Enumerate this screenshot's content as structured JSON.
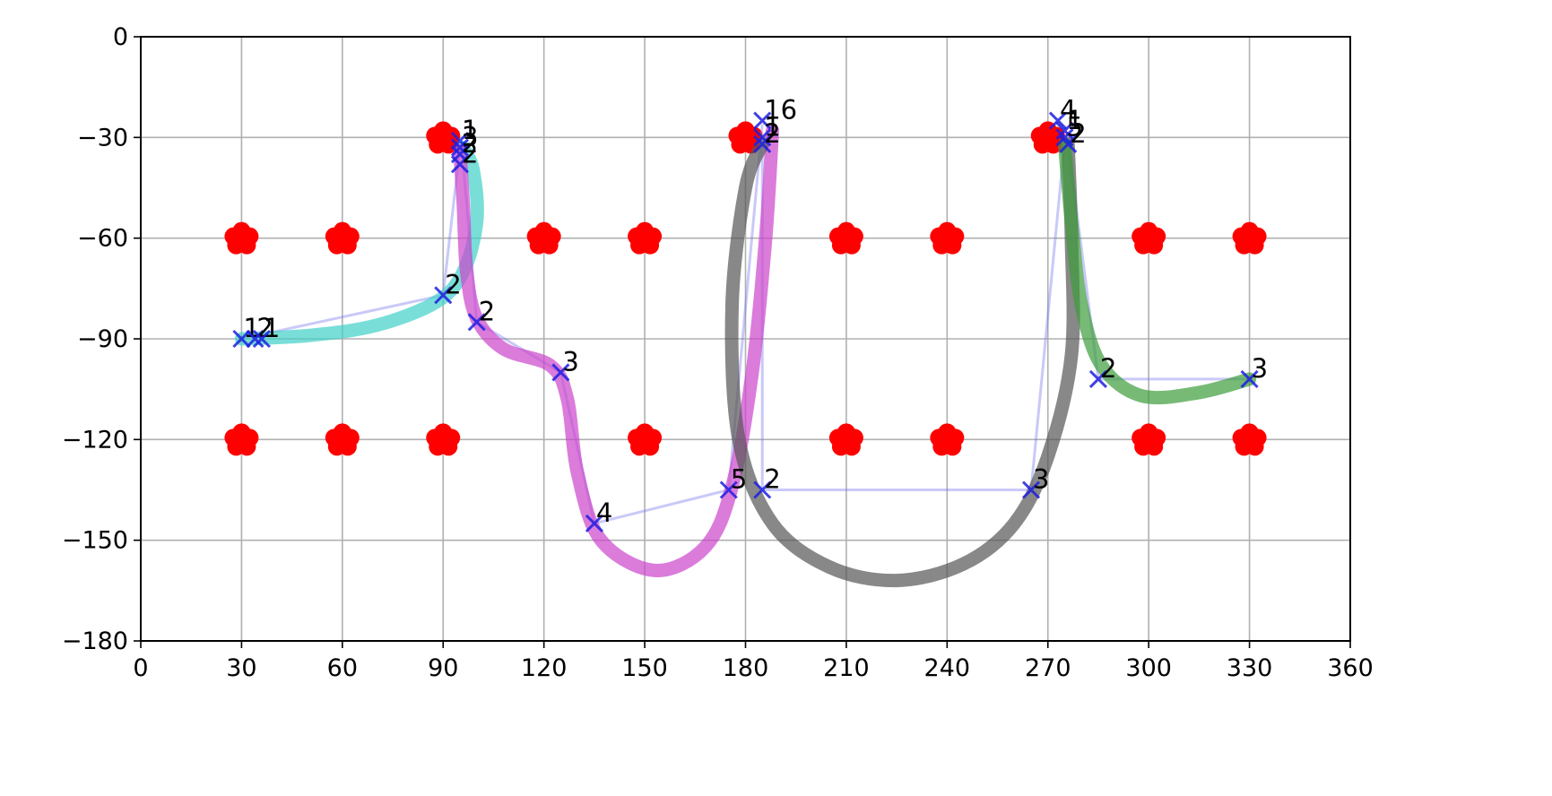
{
  "chart_data": {
    "type": "line",
    "title": "",
    "xlabel": "",
    "ylabel": "",
    "xlim": [
      0,
      360
    ],
    "ylim": [
      -180,
      0
    ],
    "xticks": [
      "0",
      "30",
      "60",
      "90",
      "120",
      "150",
      "180",
      "210",
      "240",
      "270",
      "300",
      "330",
      "360"
    ],
    "yticks": [
      "0",
      "−30",
      "−60",
      "−90",
      "−120",
      "−150",
      "−180"
    ],
    "grid": true,
    "colors": {
      "obstacle": "#ff0000",
      "marker": "#1f1fe0",
      "waypoint_link": "#7777ee",
      "cyan": "#40d0c8",
      "magenta": "#cc44cc",
      "gray": "#555555",
      "green": "#3c9c3c"
    },
    "obstacles": [
      {
        "x": 90,
        "y": -30
      },
      {
        "x": 180,
        "y": -30
      },
      {
        "x": 270,
        "y": -30
      },
      {
        "x": 30,
        "y": -60
      },
      {
        "x": 60,
        "y": -60
      },
      {
        "x": 120,
        "y": -60
      },
      {
        "x": 150,
        "y": -60
      },
      {
        "x": 210,
        "y": -60
      },
      {
        "x": 240,
        "y": -60
      },
      {
        "x": 300,
        "y": -60
      },
      {
        "x": 330,
        "y": -60
      },
      {
        "x": 30,
        "y": -120
      },
      {
        "x": 60,
        "y": -120
      },
      {
        "x": 90,
        "y": -120
      },
      {
        "x": 150,
        "y": -120
      },
      {
        "x": 210,
        "y": -120
      },
      {
        "x": 240,
        "y": -120
      },
      {
        "x": 300,
        "y": -120
      },
      {
        "x": 330,
        "y": -120
      }
    ],
    "trajectories": [
      {
        "color": "#40d0c8",
        "points": [
          [
            30,
            -90
          ],
          [
            50,
            -89
          ],
          [
            70,
            -86
          ],
          [
            88,
            -79
          ],
          [
            96,
            -70
          ],
          [
            100,
            -55
          ],
          [
            99,
            -40
          ],
          [
            96,
            -33
          ]
        ]
      },
      {
        "color": "#cc44cc",
        "points": [
          [
            95,
            -34
          ],
          [
            96,
            -50
          ],
          [
            97,
            -70
          ],
          [
            100,
            -84
          ],
          [
            108,
            -93
          ],
          [
            122,
            -98
          ],
          [
            127,
            -108
          ],
          [
            130,
            -130
          ],
          [
            137,
            -150
          ],
          [
            153,
            -159
          ],
          [
            168,
            -152
          ],
          [
            176,
            -134
          ],
          [
            182,
            -100
          ],
          [
            186,
            -60
          ],
          [
            188,
            -28
          ]
        ]
      },
      {
        "color": "#555555",
        "points": [
          [
            185,
            -32
          ],
          [
            180,
            -45
          ],
          [
            176,
            -80
          ],
          [
            178,
            -120
          ],
          [
            188,
            -145
          ],
          [
            205,
            -158
          ],
          [
            225,
            -162
          ],
          [
            245,
            -157
          ],
          [
            260,
            -145
          ],
          [
            270,
            -125
          ],
          [
            277,
            -95
          ],
          [
            277,
            -60
          ],
          [
            276,
            -32
          ]
        ]
      },
      {
        "color": "#3c9c3c",
        "points": [
          [
            275,
            -32
          ],
          [
            277,
            -55
          ],
          [
            280,
            -80
          ],
          [
            286,
            -98
          ],
          [
            298,
            -107
          ],
          [
            315,
            -106
          ],
          [
            330,
            -102
          ]
        ]
      }
    ],
    "waypoint_links": [
      [
        [
          30,
          -90
        ],
        [
          90,
          -77
        ],
        [
          95,
          -33
        ]
      ],
      [
        [
          96,
          -38
        ],
        [
          100,
          -85
        ],
        [
          125,
          -100
        ],
        [
          135,
          -145
        ],
        [
          175,
          -135
        ],
        [
          185,
          -26
        ]
      ],
      [
        [
          185,
          -31
        ],
        [
          185,
          -135
        ],
        [
          265,
          -135
        ],
        [
          275,
          -31
        ]
      ],
      [
        [
          276,
          -32
        ],
        [
          285,
          -102
        ],
        [
          330,
          -102
        ]
      ]
    ],
    "markers": [
      {
        "x": 30,
        "y": -90,
        "label": "1"
      },
      {
        "x": 34,
        "y": -90,
        "label": "2"
      },
      {
        "x": 36,
        "y": -90,
        "label": "1"
      },
      {
        "x": 90,
        "y": -77,
        "label": "2"
      },
      {
        "x": 95,
        "y": -31,
        "label": "1"
      },
      {
        "x": 95,
        "y": -33,
        "label": "3"
      },
      {
        "x": 95,
        "y": -35,
        "label": "2"
      },
      {
        "x": 95,
        "y": -38,
        "label": "2"
      },
      {
        "x": 100,
        "y": -85,
        "label": "2"
      },
      {
        "x": 125,
        "y": -100,
        "label": "3"
      },
      {
        "x": 135,
        "y": -145,
        "label": "4"
      },
      {
        "x": 175,
        "y": -135,
        "label": "5"
      },
      {
        "x": 185,
        "y": -135,
        "label": "2"
      },
      {
        "x": 185,
        "y": -25,
        "label": "16"
      },
      {
        "x": 185,
        "y": -30,
        "label": "1"
      },
      {
        "x": 185,
        "y": -32,
        "label": "2"
      },
      {
        "x": 265,
        "y": -135,
        "label": "3"
      },
      {
        "x": 273,
        "y": -25,
        "label": "4"
      },
      {
        "x": 275,
        "y": -28,
        "label": "1"
      },
      {
        "x": 275,
        "y": -30,
        "label": "5"
      },
      {
        "x": 276,
        "y": -32,
        "label": "2"
      },
      {
        "x": 285,
        "y": -102,
        "label": "2"
      },
      {
        "x": 330,
        "y": -102,
        "label": "3"
      }
    ]
  }
}
